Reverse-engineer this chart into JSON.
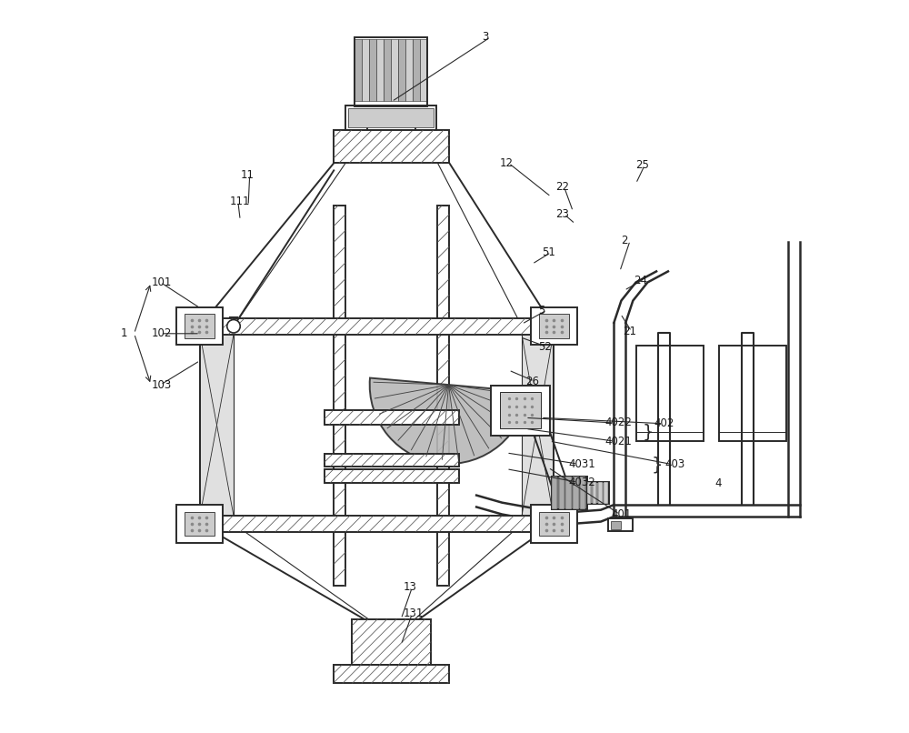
{
  "bg_color": "#ffffff",
  "line_color": "#2a2a2a",
  "label_color": "#1a1a1a",
  "fig_width": 10.0,
  "fig_height": 8.06,
  "dpi": 100
}
